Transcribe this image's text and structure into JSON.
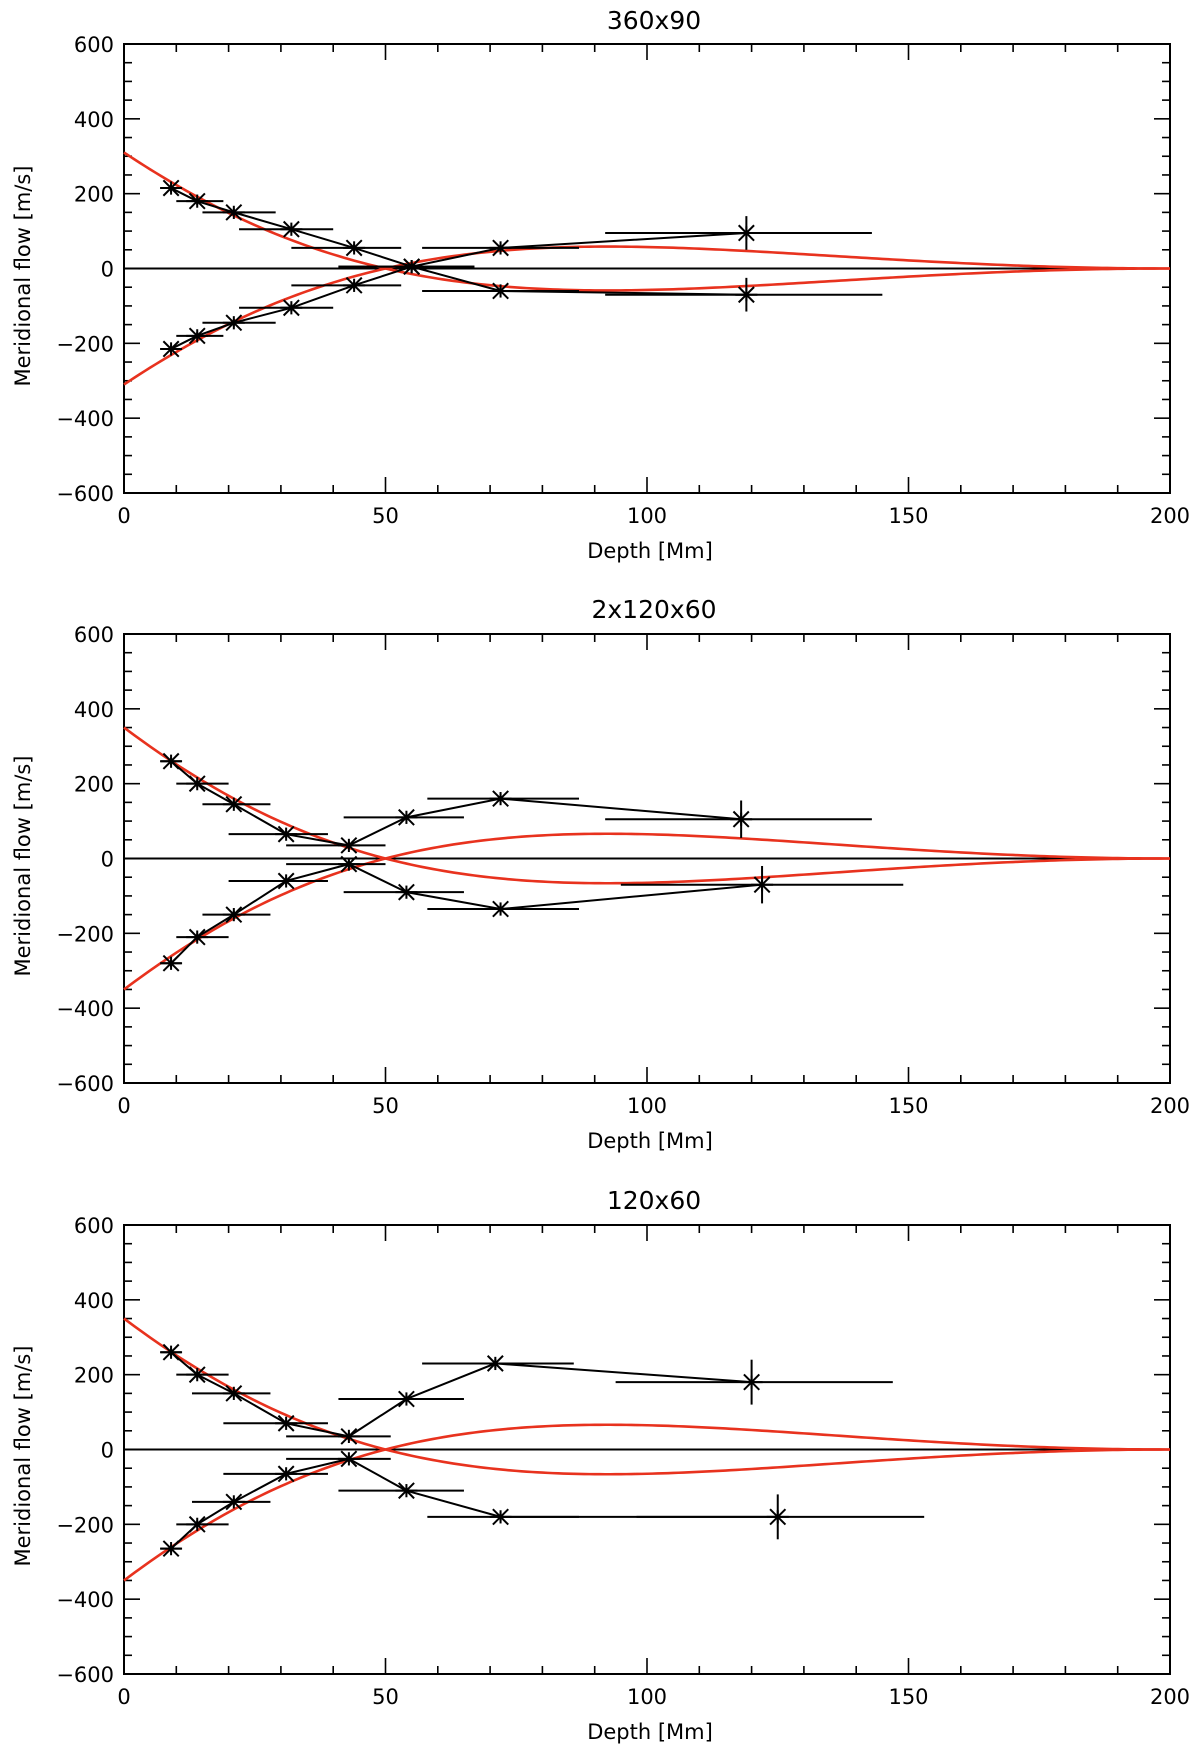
{
  "chart_data": [
    {
      "type": "scatter",
      "title": "360x90",
      "xlabel": "Depth [Mm]",
      "ylabel": "Meridional flow [m/s]",
      "xlim": [
        0,
        200
      ],
      "ylim": [
        -600,
        600
      ],
      "xticks": [
        0,
        50,
        100,
        150,
        200
      ],
      "yticks": [
        -600,
        -400,
        -200,
        0,
        200,
        400,
        600
      ],
      "zero_line": true,
      "data_color": "#000000",
      "model_color": "#e8321e",
      "model": {
        "amplitude": 310,
        "zero_crossing": 50
      },
      "series": [
        {
          "name": "upper",
          "points": [
            {
              "x": 9,
              "y": 215,
              "xerr": [
                7,
                11
              ],
              "yerr": 10
            },
            {
              "x": 14,
              "y": 180,
              "xerr": [
                10,
                19
              ],
              "yerr": 10
            },
            {
              "x": 21,
              "y": 150,
              "xerr": [
                15,
                29
              ],
              "yerr": 10
            },
            {
              "x": 32,
              "y": 105,
              "xerr": [
                22,
                40
              ],
              "yerr": 10
            },
            {
              "x": 44,
              "y": 55,
              "xerr": [
                32,
                53
              ],
              "yerr": 10
            },
            {
              "x": 55,
              "y": 5,
              "xerr": [
                41,
                67
              ],
              "yerr": 10
            },
            {
              "x": 72,
              "y": 55,
              "xerr": [
                57,
                87
              ],
              "yerr": 12
            },
            {
              "x": 119,
              "y": 95,
              "xerr": [
                92,
                143
              ],
              "yerr": 45
            }
          ]
        },
        {
          "name": "lower",
          "points": [
            {
              "x": 9,
              "y": -215,
              "xerr": [
                7,
                11
              ],
              "yerr": 10
            },
            {
              "x": 14,
              "y": -180,
              "xerr": [
                10,
                19
              ],
              "yerr": 10
            },
            {
              "x": 21,
              "y": -145,
              "xerr": [
                15,
                29
              ],
              "yerr": 10
            },
            {
              "x": 32,
              "y": -105,
              "xerr": [
                22,
                40
              ],
              "yerr": 10
            },
            {
              "x": 44,
              "y": -45,
              "xerr": [
                32,
                53
              ],
              "yerr": 10
            },
            {
              "x": 55,
              "y": 5,
              "xerr": [
                41,
                67
              ],
              "yerr": 10
            },
            {
              "x": 72,
              "y": -60,
              "xerr": [
                57,
                87
              ],
              "yerr": 12
            },
            {
              "x": 119,
              "y": -70,
              "xerr": [
                92,
                145
              ],
              "yerr": 45
            }
          ]
        }
      ]
    },
    {
      "type": "scatter",
      "title": "2x120x60",
      "xlabel": "Depth [Mm]",
      "ylabel": "Meridional flow [m/s]",
      "xlim": [
        0,
        200
      ],
      "ylim": [
        -600,
        600
      ],
      "xticks": [
        0,
        50,
        100,
        150,
        200
      ],
      "yticks": [
        -600,
        -400,
        -200,
        0,
        200,
        400,
        600
      ],
      "zero_line": true,
      "data_color": "#000000",
      "model_color": "#e8321e",
      "model": {
        "amplitude": 350,
        "zero_crossing": 50
      },
      "series": [
        {
          "name": "upper",
          "points": [
            {
              "x": 9,
              "y": 260,
              "xerr": [
                7,
                11
              ],
              "yerr": 10
            },
            {
              "x": 14,
              "y": 200,
              "xerr": [
                10,
                20
              ],
              "yerr": 10
            },
            {
              "x": 21,
              "y": 145,
              "xerr": [
                15,
                28
              ],
              "yerr": 10
            },
            {
              "x": 31,
              "y": 65,
              "xerr": [
                20,
                39
              ],
              "yerr": 10
            },
            {
              "x": 43,
              "y": 35,
              "xerr": [
                31,
                50
              ],
              "yerr": 10
            },
            {
              "x": 54,
              "y": 110,
              "xerr": [
                42,
                65
              ],
              "yerr": 10
            },
            {
              "x": 72,
              "y": 160,
              "xerr": [
                58,
                87
              ],
              "yerr": 12
            },
            {
              "x": 118,
              "y": 105,
              "xerr": [
                92,
                143
              ],
              "yerr": 50
            }
          ]
        },
        {
          "name": "lower",
          "points": [
            {
              "x": 9,
              "y": -280,
              "xerr": [
                7,
                11
              ],
              "yerr": 10
            },
            {
              "x": 14,
              "y": -210,
              "xerr": [
                10,
                20
              ],
              "yerr": 10
            },
            {
              "x": 21,
              "y": -150,
              "xerr": [
                15,
                28
              ],
              "yerr": 10
            },
            {
              "x": 31,
              "y": -60,
              "xerr": [
                20,
                39
              ],
              "yerr": 10
            },
            {
              "x": 43,
              "y": -15,
              "xerr": [
                31,
                50
              ],
              "yerr": 10
            },
            {
              "x": 54,
              "y": -90,
              "xerr": [
                42,
                65
              ],
              "yerr": 10
            },
            {
              "x": 72,
              "y": -135,
              "xerr": [
                58,
                87
              ],
              "yerr": 12
            },
            {
              "x": 122,
              "y": -70,
              "xerr": [
                95,
                149
              ],
              "yerr": 50
            }
          ]
        }
      ]
    },
    {
      "type": "scatter",
      "title": "120x60",
      "xlabel": "Depth [Mm]",
      "ylabel": "Meridional flow [m/s]",
      "xlim": [
        0,
        200
      ],
      "ylim": [
        -600,
        600
      ],
      "xticks": [
        0,
        50,
        100,
        150,
        200
      ],
      "yticks": [
        -600,
        -400,
        -200,
        0,
        200,
        400,
        600
      ],
      "zero_line": true,
      "data_color": "#000000",
      "model_color": "#e8321e",
      "model": {
        "amplitude": 350,
        "zero_crossing": 50
      },
      "series": [
        {
          "name": "upper",
          "points": [
            {
              "x": 9,
              "y": 260,
              "xerr": [
                7,
                11
              ],
              "yerr": 10
            },
            {
              "x": 14,
              "y": 200,
              "xerr": [
                10,
                20
              ],
              "yerr": 10
            },
            {
              "x": 21,
              "y": 150,
              "xerr": [
                13,
                28
              ],
              "yerr": 10
            },
            {
              "x": 31,
              "y": 70,
              "xerr": [
                19,
                39
              ],
              "yerr": 10
            },
            {
              "x": 43,
              "y": 35,
              "xerr": [
                31,
                51
              ],
              "yerr": 10
            },
            {
              "x": 54,
              "y": 135,
              "xerr": [
                41,
                65
              ],
              "yerr": 10
            },
            {
              "x": 71,
              "y": 230,
              "xerr": [
                57,
                86
              ],
              "yerr": 12
            },
            {
              "x": 120,
              "y": 180,
              "xerr": [
                94,
                147
              ],
              "yerr": 60
            }
          ]
        },
        {
          "name": "lower",
          "points": [
            {
              "x": 9,
              "y": -265,
              "xerr": [
                7,
                11
              ],
              "yerr": 10
            },
            {
              "x": 14,
              "y": -200,
              "xerr": [
                10,
                20
              ],
              "yerr": 10
            },
            {
              "x": 21,
              "y": -140,
              "xerr": [
                13,
                28
              ],
              "yerr": 10
            },
            {
              "x": 31,
              "y": -65,
              "xerr": [
                19,
                39
              ],
              "yerr": 10
            },
            {
              "x": 43,
              "y": -25,
              "xerr": [
                31,
                51
              ],
              "yerr": 10
            },
            {
              "x": 54,
              "y": -110,
              "xerr": [
                41,
                65
              ],
              "yerr": 10
            },
            {
              "x": 72,
              "y": -180,
              "xerr": [
                58,
                87
              ],
              "yerr": 12
            },
            {
              "x": 125,
              "y": -180,
              "xerr": [
                98,
                153
              ],
              "yerr": 60
            }
          ]
        }
      ]
    }
  ]
}
